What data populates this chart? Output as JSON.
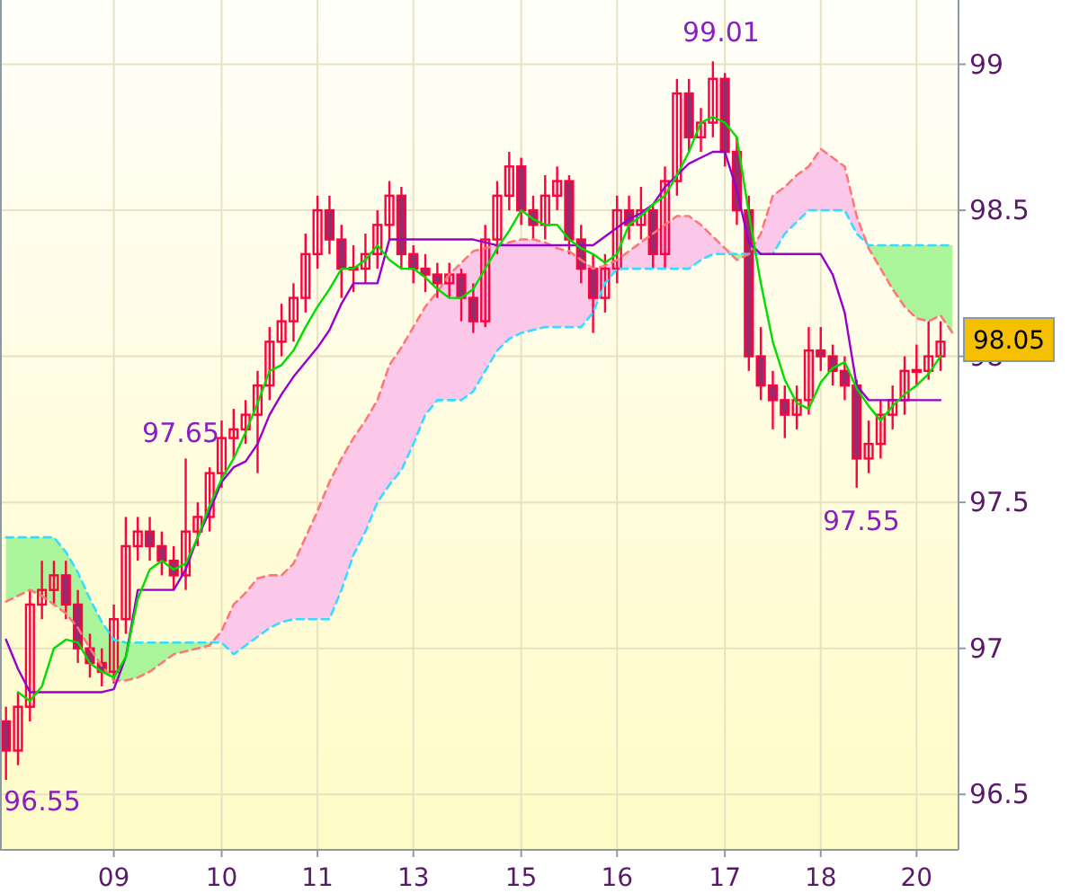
{
  "chart_data": {
    "type": "candlestick",
    "color": "#ff0040",
    "categories": [
      null,
      null,
      null,
      null,
      null,
      null,
      null,
      null,
      null,
      "09",
      null,
      null,
      null,
      null,
      null,
      null,
      null,
      null,
      "10",
      null,
      null,
      null,
      null,
      null,
      null,
      null,
      "11",
      null,
      null,
      null,
      null,
      null,
      null,
      null,
      "13",
      null,
      null,
      null,
      null,
      null,
      null,
      null,
      null,
      "15",
      null,
      null,
      null,
      null,
      null,
      null,
      null,
      "16",
      null,
      null,
      null,
      null,
      null,
      null,
      null,
      null,
      "17",
      null,
      null,
      null,
      null,
      null,
      null,
      null,
      "18",
      null,
      null,
      null,
      null,
      null,
      null,
      null,
      "20",
      null,
      null,
      null
    ],
    "ohlc": [
      [
        96.75,
        96.8,
        96.55,
        96.65
      ],
      [
        96.65,
        96.85,
        96.6,
        96.8
      ],
      [
        96.8,
        97.2,
        96.75,
        97.15
      ],
      [
        97.15,
        97.3,
        97.1,
        97.2
      ],
      [
        97.2,
        97.3,
        97.15,
        97.25
      ],
      [
        97.25,
        97.3,
        97.1,
        97.15
      ],
      [
        97.15,
        97.2,
        96.95,
        97.0
      ],
      [
        97.0,
        97.05,
        96.9,
        96.95
      ],
      [
        96.95,
        97.0,
        96.87,
        96.92
      ],
      [
        96.92,
        97.15,
        96.88,
        97.1
      ],
      [
        97.1,
        97.45,
        97.05,
        97.35
      ],
      [
        97.35,
        97.45,
        97.3,
        97.4
      ],
      [
        97.4,
        97.45,
        97.3,
        97.35
      ],
      [
        97.35,
        97.4,
        97.25,
        97.3
      ],
      [
        97.3,
        97.35,
        97.2,
        97.25
      ],
      [
        97.25,
        97.65,
        97.2,
        97.4
      ],
      [
        97.4,
        97.5,
        97.35,
        97.45
      ],
      [
        97.45,
        97.62,
        97.4,
        97.6
      ],
      [
        97.6,
        97.78,
        97.55,
        97.72
      ],
      [
        97.72,
        97.82,
        97.65,
        97.75
      ],
      [
        97.75,
        97.85,
        97.7,
        97.8
      ],
      [
        97.8,
        97.95,
        97.6,
        97.9
      ],
      [
        97.9,
        98.1,
        97.85,
        98.05
      ],
      [
        98.05,
        98.18,
        98.0,
        98.12
      ],
      [
        98.12,
        98.25,
        98.05,
        98.2
      ],
      [
        98.2,
        98.42,
        98.15,
        98.35
      ],
      [
        98.35,
        98.55,
        98.3,
        98.5
      ],
      [
        98.5,
        98.55,
        98.35,
        98.4
      ],
      [
        98.4,
        98.45,
        98.2,
        98.3
      ],
      [
        98.3,
        98.38,
        98.22,
        98.3
      ],
      [
        98.3,
        98.42,
        98.25,
        98.35
      ],
      [
        98.35,
        98.5,
        98.3,
        98.45
      ],
      [
        98.45,
        98.6,
        98.4,
        98.55
      ],
      [
        98.55,
        98.58,
        98.3,
        98.35
      ],
      [
        98.35,
        98.38,
        98.25,
        98.3
      ],
      [
        98.3,
        98.35,
        98.22,
        98.28
      ],
      [
        98.28,
        98.32,
        98.2,
        98.25
      ],
      [
        98.25,
        98.32,
        98.2,
        98.28
      ],
      [
        98.28,
        98.3,
        98.12,
        98.2
      ],
      [
        98.2,
        98.25,
        98.08,
        98.12
      ],
      [
        98.12,
        98.45,
        98.1,
        98.4
      ],
      [
        98.4,
        98.6,
        98.35,
        98.55
      ],
      [
        98.55,
        98.7,
        98.5,
        98.65
      ],
      [
        98.65,
        98.68,
        98.45,
        98.5
      ],
      [
        98.5,
        98.55,
        98.4,
        98.45
      ],
      [
        98.45,
        98.62,
        98.4,
        98.55
      ],
      [
        98.55,
        98.65,
        98.5,
        98.6
      ],
      [
        98.6,
        98.62,
        98.35,
        98.4
      ],
      [
        98.4,
        98.45,
        98.25,
        98.3
      ],
      [
        98.3,
        98.35,
        98.08,
        98.2
      ],
      [
        98.2,
        98.35,
        98.15,
        98.3
      ],
      [
        98.3,
        98.55,
        98.25,
        98.5
      ],
      [
        98.5,
        98.55,
        98.4,
        98.45
      ],
      [
        98.45,
        98.58,
        98.4,
        98.5
      ],
      [
        98.5,
        98.52,
        98.3,
        98.35
      ],
      [
        98.35,
        98.65,
        98.3,
        98.6
      ],
      [
        98.6,
        98.95,
        98.55,
        98.9
      ],
      [
        98.9,
        98.95,
        98.7,
        98.75
      ],
      [
        98.75,
        98.85,
        98.7,
        98.8
      ],
      [
        98.8,
        99.01,
        98.75,
        98.95
      ],
      [
        98.95,
        98.97,
        98.65,
        98.7
      ],
      [
        98.7,
        98.75,
        98.45,
        98.5
      ],
      [
        98.5,
        98.55,
        97.95,
        98.0
      ],
      [
        98.0,
        98.1,
        97.85,
        97.9
      ],
      [
        97.9,
        97.95,
        97.75,
        97.85
      ],
      [
        97.85,
        97.9,
        97.72,
        97.8
      ],
      [
        97.8,
        97.9,
        97.75,
        97.85
      ],
      [
        97.85,
        98.1,
        97.8,
        98.02
      ],
      [
        98.02,
        98.1,
        97.95,
        98.0
      ],
      [
        98.0,
        98.04,
        97.9,
        97.95
      ],
      [
        97.95,
        98.0,
        97.85,
        97.9
      ],
      [
        97.9,
        97.92,
        97.55,
        97.65
      ],
      [
        97.65,
        97.78,
        97.6,
        97.7
      ],
      [
        97.7,
        97.85,
        97.65,
        97.8
      ],
      [
        97.8,
        97.9,
        97.75,
        97.85
      ],
      [
        97.85,
        98.0,
        97.8,
        97.95
      ],
      [
        97.95,
        98.04,
        97.9,
        97.95
      ],
      [
        97.95,
        98.12,
        97.92,
        98.0
      ],
      [
        98.0,
        98.12,
        97.95,
        98.05
      ],
      null
    ],
    "ylim": [
      96.31,
      99.22
    ],
    "yticks": [
      96.5,
      97,
      97.5,
      98,
      98.5,
      99
    ],
    "grid": true,
    "annotations": [
      "96.55",
      "97.65",
      "99.01",
      "97.55",
      "98.05"
    ],
    "series": [
      {
        "type": "line",
        "line_style": "dashed",
        "color": "#33ddff",
        "values": [
          97.38,
          97.38,
          97.38,
          97.38,
          97.38,
          97.33,
          97.26,
          97.17,
          97.09,
          97.03,
          97.02,
          97.02,
          97.02,
          97.02,
          97.02,
          97.02,
          97.02,
          97.02,
          97.02,
          96.98,
          97.01,
          97.04,
          97.07,
          97.09,
          97.1,
          97.1,
          97.1,
          97.1,
          97.2,
          97.32,
          97.4,
          97.5,
          97.56,
          97.61,
          97.7,
          97.8,
          97.85,
          97.85,
          97.85,
          97.88,
          97.95,
          98.02,
          98.06,
          98.08,
          98.09,
          98.1,
          98.1,
          98.1,
          98.1,
          98.15,
          98.25,
          98.3,
          98.3,
          98.3,
          98.3,
          98.3,
          98.3,
          98.3,
          98.33,
          98.35,
          98.35,
          98.35,
          98.35,
          98.35,
          98.35,
          98.42,
          98.46,
          98.5,
          98.5,
          98.5,
          98.5,
          98.42,
          98.38,
          98.38,
          98.38,
          98.38,
          98.38,
          98.38,
          98.38,
          98.38
        ]
      },
      {
        "type": "line",
        "line_style": "dashed",
        "color": "#ff7777",
        "values": [
          97.16,
          97.18,
          97.2,
          97.18,
          97.15,
          97.12,
          97.07,
          97.0,
          96.94,
          96.89,
          96.89,
          96.9,
          96.92,
          96.95,
          96.98,
          96.99,
          97.0,
          97.01,
          97.06,
          97.15,
          97.19,
          97.24,
          97.25,
          97.25,
          97.29,
          97.38,
          97.47,
          97.57,
          97.65,
          97.72,
          97.78,
          97.85,
          97.97,
          98.03,
          98.1,
          98.17,
          98.22,
          98.28,
          98.32,
          98.36,
          98.37,
          98.38,
          98.39,
          98.4,
          98.4,
          98.39,
          98.37,
          98.36,
          98.33,
          98.3,
          98.31,
          98.33,
          98.36,
          98.39,
          98.42,
          98.45,
          98.48,
          98.48,
          98.45,
          98.41,
          98.37,
          98.33,
          98.35,
          98.42,
          98.55,
          98.58,
          98.62,
          98.65,
          98.71,
          98.68,
          98.65,
          98.48,
          98.37,
          98.3,
          98.23,
          98.17,
          98.13,
          98.12,
          98.14,
          98.08
        ]
      },
      {
        "type": "line",
        "line_style": "solid",
        "color": "#9900cc",
        "values": [
          97.03,
          96.93,
          96.85,
          96.85,
          96.85,
          96.85,
          96.85,
          96.85,
          96.85,
          96.86,
          96.97,
          97.2,
          97.2,
          97.2,
          97.2,
          97.27,
          97.38,
          97.47,
          97.57,
          97.62,
          97.64,
          97.7,
          97.8,
          97.87,
          97.93,
          97.98,
          98.03,
          98.09,
          98.18,
          98.25,
          98.25,
          98.25,
          98.4,
          98.4,
          98.4,
          98.4,
          98.4,
          98.4,
          98.4,
          98.4,
          98.39,
          98.38,
          98.38,
          98.38,
          98.38,
          98.38,
          98.38,
          98.38,
          98.38,
          98.38,
          98.41,
          98.44,
          98.47,
          98.49,
          98.52,
          98.58,
          98.62,
          98.66,
          98.68,
          98.7,
          98.7,
          98.57,
          98.39,
          98.35,
          98.35,
          98.35,
          98.35,
          98.35,
          98.35,
          98.28,
          98.15,
          97.9,
          97.85,
          97.85,
          97.85,
          97.85,
          97.85,
          97.85,
          97.85,
          null
        ]
      },
      {
        "type": "line",
        "line_style": "solid",
        "color": "#00dd00",
        "values": [
          null,
          96.85,
          96.82,
          96.87,
          97.0,
          97.03,
          97.02,
          96.95,
          96.92,
          96.9,
          96.97,
          97.17,
          97.27,
          97.3,
          97.27,
          97.29,
          97.38,
          97.49,
          97.58,
          97.65,
          97.74,
          97.84,
          97.95,
          97.97,
          98.02,
          98.1,
          98.17,
          98.23,
          98.3,
          98.3,
          98.33,
          98.38,
          98.33,
          98.3,
          98.3,
          98.27,
          98.23,
          98.2,
          98.2,
          98.23,
          98.3,
          98.37,
          98.43,
          98.5,
          98.47,
          98.45,
          98.45,
          98.4,
          98.37,
          98.35,
          98.32,
          98.35,
          98.45,
          98.48,
          98.52,
          98.55,
          98.62,
          98.7,
          98.8,
          98.82,
          98.8,
          98.75,
          98.49,
          98.25,
          98.05,
          97.92,
          97.84,
          97.82,
          97.91,
          97.96,
          97.98,
          97.89,
          97.83,
          97.78,
          97.83,
          97.87,
          97.9,
          97.94,
          98.0,
          null
        ]
      }
    ]
  }
}
